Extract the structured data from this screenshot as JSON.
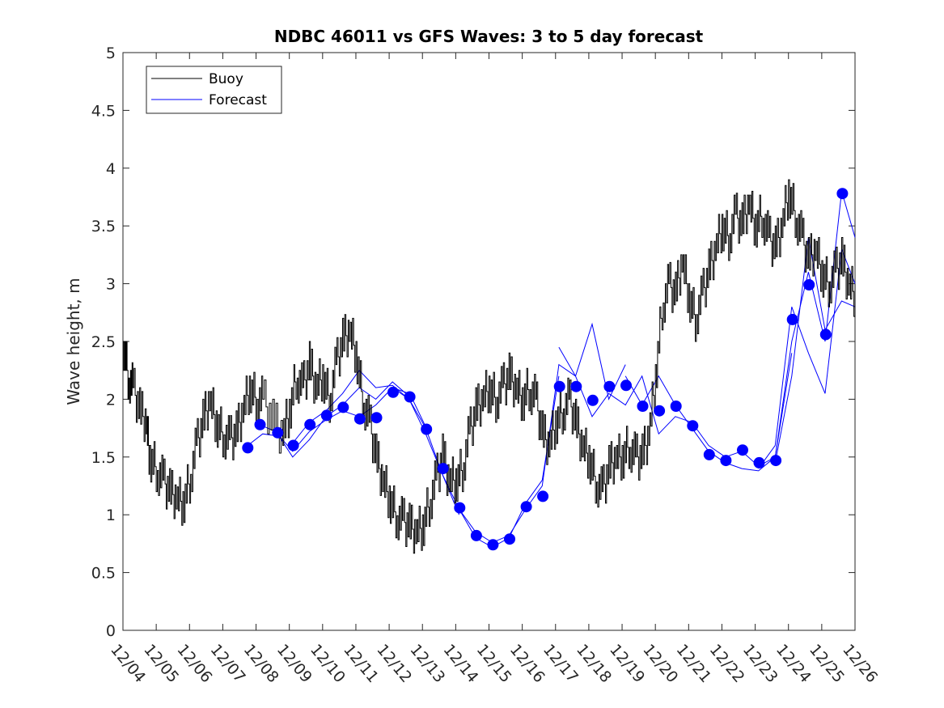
{
  "chart_data": {
    "type": "line",
    "title": "NDBC 46011 vs GFS Waves: 3 to 5 day forecast",
    "xlabel": "",
    "ylabel": "Wave height, m",
    "xlim": [
      0,
      22
    ],
    "ylim": [
      0,
      5
    ],
    "grid": false,
    "legend_position": "top-left",
    "x_tick_labels": [
      "12/04",
      "12/05",
      "12/06",
      "12/07",
      "12/08",
      "12/09",
      "12/10",
      "12/11",
      "12/12",
      "12/13",
      "12/14",
      "12/15",
      "12/16",
      "12/17",
      "12/18",
      "12/19",
      "12/20",
      "12/21",
      "12/22",
      "12/23",
      "12/24",
      "12/25",
      "12/26"
    ],
    "y_tick_labels": [
      "0",
      "0.5",
      "1",
      "1.5",
      "2",
      "2.5",
      "3",
      "3.5",
      "4",
      "4.5",
      "5"
    ],
    "colors": {
      "buoy": "#000000",
      "forecast": "#0000ff"
    },
    "series": [
      {
        "name": "Buoy",
        "x": [
          0,
          0.15,
          0.3,
          0.5,
          0.7,
          0.8,
          1.0,
          1.2,
          1.4,
          1.6,
          1.8,
          2.0,
          2.2,
          2.4,
          2.6,
          2.8,
          3.0,
          3.2,
          3.4,
          3.6,
          3.8,
          4.0,
          4.2,
          4.5,
          4.8,
          5.0,
          5.2,
          5.4,
          5.6,
          5.8,
          6.0,
          6.2,
          6.4,
          6.6,
          6.8,
          7.0,
          7.2,
          7.4,
          7.6,
          7.8,
          8.0,
          8.2,
          8.4,
          8.6,
          8.8,
          9.0,
          9.2,
          9.4,
          9.6,
          9.8,
          10.0,
          10.2,
          10.4,
          10.6,
          10.8,
          11.0,
          11.2,
          11.4,
          11.6,
          11.8,
          12.0,
          12.2,
          12.4,
          12.6,
          12.8,
          13.0,
          13.2,
          13.4,
          13.6,
          13.8,
          14.0,
          14.2,
          14.4,
          14.6,
          14.8,
          15.0,
          15.2,
          15.4,
          15.6,
          15.8,
          16.0,
          16.2,
          16.4,
          16.6,
          16.8,
          17.0,
          17.2,
          17.4,
          17.6,
          17.8,
          18.0,
          18.2,
          18.4,
          18.6,
          18.8,
          19.0,
          19.2,
          19.4,
          19.6,
          19.8,
          20.0,
          20.2,
          20.4,
          20.6,
          20.8,
          21.0,
          21.2,
          21.4,
          21.6,
          21.8,
          22.0
        ],
        "values": [
          2.5,
          2.2,
          2.1,
          1.9,
          1.8,
          1.5,
          1.4,
          1.3,
          1.2,
          1.15,
          1.1,
          1.3,
          1.6,
          1.8,
          2.0,
          1.8,
          1.7,
          1.65,
          1.7,
          1.9,
          2.1,
          2.0,
          2.0,
          1.8,
          1.7,
          1.9,
          2.2,
          2.1,
          2.3,
          2.1,
          2.2,
          2.0,
          2.3,
          2.5,
          2.6,
          2.4,
          2.0,
          1.8,
          1.5,
          1.3,
          1.15,
          1.0,
          0.95,
          0.9,
          0.85,
          0.9,
          1.1,
          1.3,
          1.5,
          1.3,
          1.3,
          1.4,
          1.7,
          1.9,
          2.0,
          2.1,
          2.0,
          2.1,
          2.2,
          2.1,
          2.0,
          2.1,
          2.0,
          1.7,
          1.6,
          1.8,
          1.9,
          2.0,
          1.8,
          1.6,
          1.5,
          1.3,
          1.2,
          1.4,
          1.5,
          1.5,
          1.6,
          1.5,
          1.5,
          1.7,
          2.2,
          2.8,
          3.0,
          2.9,
          3.2,
          2.9,
          2.7,
          2.9,
          3.1,
          3.3,
          3.5,
          3.4,
          3.6,
          3.5,
          3.7,
          3.5,
          3.6,
          3.4,
          3.3,
          3.5,
          3.8,
          3.6,
          3.4,
          3.2,
          3.3,
          3.1,
          3.0,
          3.1,
          3.2,
          3.0,
          2.9
        ]
      },
      {
        "name": "Forecast",
        "points": [
          {
            "date": "12/07 18Z",
            "x": 3.75,
            "value": 1.58
          },
          {
            "date": "12/08 03Z",
            "x": 4.12,
            "value": 1.78
          },
          {
            "date": "12/08 16Z",
            "x": 4.65,
            "value": 1.71
          },
          {
            "date": "12/09 03Z",
            "x": 5.12,
            "value": 1.6
          },
          {
            "date": "12/09 16Z",
            "x": 5.62,
            "value": 1.78
          },
          {
            "date": "12/10 03Z",
            "x": 6.12,
            "value": 1.86
          },
          {
            "date": "12/10 15Z",
            "x": 6.62,
            "value": 1.93
          },
          {
            "date": "12/11 03Z",
            "x": 7.12,
            "value": 1.83
          },
          {
            "date": "12/11 15Z",
            "x": 7.62,
            "value": 1.84
          },
          {
            "date": "12/12 03Z",
            "x": 8.12,
            "value": 2.06
          },
          {
            "date": "12/12 15Z",
            "x": 8.62,
            "value": 2.02
          },
          {
            "date": "12/13 03Z",
            "x": 9.12,
            "value": 1.74
          },
          {
            "date": "12/13 15Z",
            "x": 9.62,
            "value": 1.4
          },
          {
            "date": "12/14 03Z",
            "x": 10.12,
            "value": 1.06
          },
          {
            "date": "12/14 15Z",
            "x": 10.62,
            "value": 0.82
          },
          {
            "date": "12/15 03Z",
            "x": 11.12,
            "value": 0.74
          },
          {
            "date": "12/15 15Z",
            "x": 11.62,
            "value": 0.79
          },
          {
            "date": "12/16 03Z",
            "x": 12.12,
            "value": 1.07
          },
          {
            "date": "12/16 15Z",
            "x": 12.62,
            "value": 1.16
          },
          {
            "date": "12/17 03Z",
            "x": 13.12,
            "value": 2.11
          },
          {
            "date": "12/17 15Z",
            "x": 13.62,
            "value": 2.11
          },
          {
            "date": "12/18 03Z",
            "x": 14.12,
            "value": 1.99
          },
          {
            "date": "12/18 15Z",
            "x": 14.62,
            "value": 2.11
          },
          {
            "date": "12/19 03Z",
            "x": 15.12,
            "value": 2.12
          },
          {
            "date": "12/19 15Z",
            "x": 15.62,
            "value": 1.94
          },
          {
            "date": "12/20 03Z",
            "x": 16.12,
            "value": 1.9
          },
          {
            "date": "12/20 15Z",
            "x": 16.62,
            "value": 1.94
          },
          {
            "date": "12/21 03Z",
            "x": 17.12,
            "value": 1.77
          },
          {
            "date": "12/21 15Z",
            "x": 17.62,
            "value": 1.52
          },
          {
            "date": "12/22 03Z",
            "x": 18.12,
            "value": 1.47
          },
          {
            "date": "12/22 15Z",
            "x": 18.62,
            "value": 1.56
          },
          {
            "date": "12/23 03Z",
            "x": 19.12,
            "value": 1.45
          },
          {
            "date": "12/23 15Z",
            "x": 19.62,
            "value": 1.47
          },
          {
            "date": "12/24 03Z",
            "x": 20.12,
            "value": 2.69
          },
          {
            "date": "12/24 15Z",
            "x": 20.62,
            "value": 2.99
          },
          {
            "date": "12/25 03Z",
            "x": 21.12,
            "value": 2.56
          },
          {
            "date": "12/25 15Z",
            "x": 21.62,
            "value": 3.78
          }
        ]
      }
    ],
    "forecast_runs": [
      {
        "x": [
          3.75,
          4.2,
          4.7,
          5.1,
          5.6,
          6.1,
          6.6,
          7.1,
          7.6,
          8.1,
          8.6
        ],
        "values": [
          1.6,
          1.7,
          1.68,
          1.55,
          1.72,
          1.82,
          1.9,
          1.85,
          1.95,
          2.1,
          2.05
        ]
      },
      {
        "x": [
          4.1,
          4.6,
          5.1,
          5.6,
          6.1,
          6.6,
          7.1,
          7.6,
          8.1,
          8.7,
          9.2
        ],
        "values": [
          1.78,
          1.72,
          1.5,
          1.65,
          1.85,
          1.95,
          2.1,
          2.0,
          2.15,
          2.0,
          1.7
        ]
      },
      {
        "x": [
          5.1,
          5.6,
          6.1,
          6.6,
          7.1,
          7.6,
          8.1,
          8.6,
          9.1,
          9.6,
          10.1
        ],
        "values": [
          1.62,
          1.8,
          1.9,
          2.05,
          2.25,
          2.1,
          2.12,
          2.0,
          1.75,
          1.35,
          1.0
        ]
      },
      {
        "x": [
          8.1,
          8.6,
          9.1,
          9.6,
          10.1,
          10.6,
          11.1,
          11.6,
          12.1,
          12.6,
          13.1
        ],
        "values": [
          2.1,
          2.0,
          1.7,
          1.35,
          1.05,
          0.8,
          0.72,
          0.8,
          1.1,
          1.3,
          2.2
        ]
      },
      {
        "x": [
          10.1,
          10.6,
          11.1,
          11.6,
          12.1,
          12.6,
          13.1,
          13.6,
          14.1,
          14.6,
          15.1
        ],
        "values": [
          1.05,
          0.85,
          0.76,
          0.82,
          1.05,
          1.25,
          2.3,
          2.2,
          2.65,
          2.0,
          2.3
        ]
      },
      {
        "x": [
          13.1,
          13.6,
          14.1,
          14.6,
          15.1,
          15.6,
          16.1,
          16.6,
          17.1,
          17.6,
          18.1
        ],
        "values": [
          2.45,
          2.2,
          1.85,
          2.05,
          1.95,
          2.2,
          1.7,
          1.85,
          1.8,
          1.6,
          1.5
        ]
      },
      {
        "x": [
          15.1,
          15.6,
          16.1,
          16.6,
          17.1,
          17.6,
          18.1,
          18.6,
          19.1,
          19.6,
          20.1
        ],
        "values": [
          2.2,
          1.95,
          2.2,
          1.95,
          1.75,
          1.55,
          1.45,
          1.4,
          1.38,
          1.5,
          2.4
        ]
      },
      {
        "x": [
          18.1,
          18.6,
          19.1,
          19.6,
          20.1,
          20.6,
          21.1,
          21.6,
          22.0
        ],
        "values": [
          1.5,
          1.55,
          1.42,
          1.5,
          2.5,
          3.1,
          2.5,
          3.8,
          3.4
        ]
      },
      {
        "x": [
          19.1,
          19.6,
          20.1,
          20.6,
          21.1,
          21.6,
          22.0
        ],
        "values": [
          1.4,
          1.6,
          2.8,
          2.4,
          2.05,
          3.3,
          3.0
        ]
      },
      {
        "x": [
          19.6,
          20.1,
          20.6,
          21.1,
          21.6,
          22.0
        ],
        "values": [
          1.45,
          2.2,
          3.4,
          2.6,
          2.85,
          2.8
        ]
      }
    ]
  }
}
